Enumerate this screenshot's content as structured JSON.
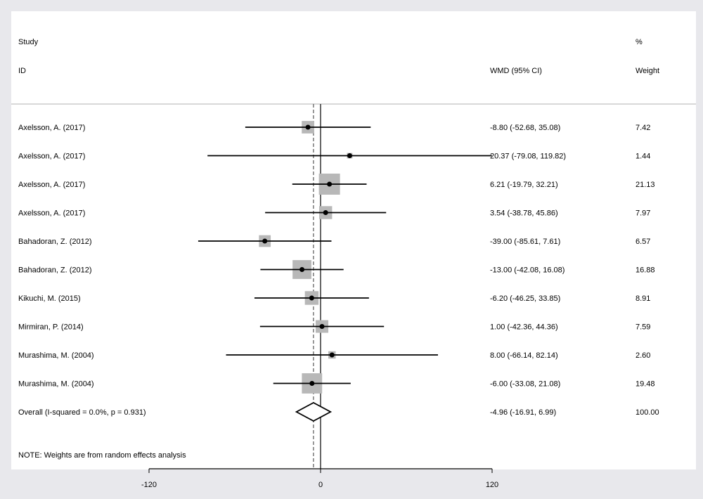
{
  "header": {
    "study_label": "Study",
    "id_label": "ID",
    "effect_label": "WMD (95% CI)",
    "pct_label": "%",
    "weight_label": "Weight"
  },
  "note": "NOTE: Weights are from random effects analysis",
  "colors": {
    "background": "#e8e8ec",
    "panel": "#ffffff",
    "box": "#b8b8b8",
    "line": "#000000",
    "reference_dash": "#555555"
  },
  "chart_data": {
    "type": "forest",
    "title": "",
    "xlabel": "",
    "ylabel": "",
    "xlim": [
      -120,
      120
    ],
    "x_ticks": [
      -120,
      0,
      120
    ],
    "null_line": 0,
    "overall_line": -4.96,
    "studies": [
      {
        "id": "Axelsson, A.  (2017)",
        "estimate": -8.8,
        "lower": -52.68,
        "upper": 35.08,
        "ci_text": "-8.80 (-52.68, 35.08)",
        "weight": 7.42,
        "weight_text": "7.42"
      },
      {
        "id": "Axelsson, A.  (2017)",
        "estimate": 20.37,
        "lower": -79.08,
        "upper": 119.82,
        "ci_text": "20.37 (-79.08, 119.82)",
        "weight": 1.44,
        "weight_text": "1.44"
      },
      {
        "id": "Axelsson, A.  (2017)",
        "estimate": 6.21,
        "lower": -19.79,
        "upper": 32.21,
        "ci_text": "6.21 (-19.79, 32.21)",
        "weight": 21.13,
        "weight_text": "21.13"
      },
      {
        "id": "Axelsson, A.  (2017)",
        "estimate": 3.54,
        "lower": -38.78,
        "upper": 45.86,
        "ci_text": "3.54 (-38.78, 45.86)",
        "weight": 7.97,
        "weight_text": "7.97"
      },
      {
        "id": "Bahadoran, Z.  (2012)",
        "estimate": -39.0,
        "lower": -85.61,
        "upper": 7.61,
        "ci_text": "-39.00 (-85.61, 7.61)",
        "weight": 6.57,
        "weight_text": "6.57"
      },
      {
        "id": "Bahadoran, Z.  (2012)",
        "estimate": -13.0,
        "lower": -42.08,
        "upper": 16.08,
        "ci_text": "-13.00 (-42.08, 16.08)",
        "weight": 16.88,
        "weight_text": "16.88"
      },
      {
        "id": "Kikuchi, M.  (2015)",
        "estimate": -6.2,
        "lower": -46.25,
        "upper": 33.85,
        "ci_text": "-6.20 (-46.25, 33.85)",
        "weight": 8.91,
        "weight_text": "8.91"
      },
      {
        "id": "Mirmiran, P.  (2014)",
        "estimate": 1.0,
        "lower": -42.36,
        "upper": 44.36,
        "ci_text": "1.00 (-42.36, 44.36)",
        "weight": 7.59,
        "weight_text": "7.59"
      },
      {
        "id": "Murashima, M.  (2004)",
        "estimate": 8.0,
        "lower": -66.14,
        "upper": 82.14,
        "ci_text": "8.00 (-66.14, 82.14)",
        "weight": 2.6,
        "weight_text": "2.60"
      },
      {
        "id": "Murashima, M.  (2004)",
        "estimate": -6.0,
        "lower": -33.08,
        "upper": 21.08,
        "ci_text": "-6.00 (-33.08, 21.08)",
        "weight": 19.48,
        "weight_text": "19.48"
      }
    ],
    "overall": {
      "id": "Overall  (I-squared = 0.0%, p = 0.931)",
      "estimate": -4.96,
      "lower": -16.91,
      "upper": 6.99,
      "ci_text": "-4.96 (-16.91, 6.99)",
      "weight": 100.0,
      "weight_text": "100.00"
    }
  }
}
